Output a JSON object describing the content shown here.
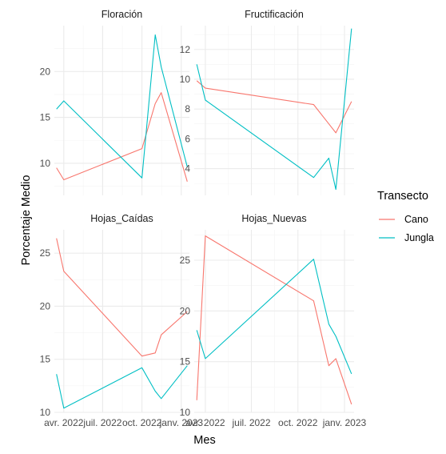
{
  "chart_data": {
    "type": "line",
    "xlabel": "Mes",
    "ylabel": "Porcentaje Medio",
    "x_ticks": [
      "avr. 2022",
      "juil. 2022",
      "oct. 2022",
      "janv. 2023"
    ],
    "x_tick_values": [
      "2022-04-01",
      "2022-07-01",
      "2022-10-01",
      "2023-01-01"
    ],
    "x_range": [
      "2022-03-10",
      "2023-01-20"
    ],
    "grid": true,
    "legend": {
      "title": "Transecto",
      "position": "right",
      "items": [
        {
          "name": "Cano",
          "color": "#F8766D"
        },
        {
          "name": "Jungla",
          "color": "#00BFC4"
        }
      ]
    },
    "panels": [
      {
        "title": "Floración",
        "ylim": [
          6.5,
          25
        ],
        "y_ticks": [
          10,
          15,
          20
        ],
        "series": [
          {
            "name": "Cano",
            "color": "#F8766D",
            "x": [
              "2022-03-15",
              "2022-04-01",
              "2022-10-01",
              "2022-11-01",
              "2022-11-15",
              "2023-01-15"
            ],
            "y": [
              9.5,
              8.2,
              11.6,
              16.5,
              17.7,
              8.0
            ]
          },
          {
            "name": "Jungla",
            "color": "#00BFC4",
            "x": [
              "2022-03-15",
              "2022-04-01",
              "2022-10-01",
              "2022-11-01",
              "2022-11-15",
              "2023-01-15"
            ],
            "y": [
              15.9,
              16.8,
              8.4,
              24.0,
              20.5,
              9.6
            ]
          }
        ]
      },
      {
        "title": "Fructificación",
        "ylim": [
          2.2,
          13.6
        ],
        "y_ticks": [
          4,
          6,
          8,
          10,
          12
        ],
        "series": [
          {
            "name": "Cano",
            "color": "#F8766D",
            "x": [
              "2022-03-15",
              "2022-04-01",
              "2022-11-01",
              "2022-12-01",
              "2022-12-15",
              "2023-01-15"
            ],
            "y": [
              9.9,
              9.4,
              8.3,
              7.0,
              6.4,
              8.5
            ]
          },
          {
            "name": "Jungla",
            "color": "#00BFC4",
            "x": [
              "2022-03-15",
              "2022-04-01",
              "2022-11-01",
              "2022-12-01",
              "2022-12-15",
              "2023-01-15"
            ],
            "y": [
              11.0,
              8.6,
              3.4,
              4.7,
              2.6,
              13.4
            ]
          }
        ]
      },
      {
        "title": "Hojas_Caídas",
        "ylim": [
          10,
          27.2
        ],
        "y_ticks": [
          10,
          15,
          20,
          25
        ],
        "series": [
          {
            "name": "Cano",
            "color": "#F8766D",
            "x": [
              "2022-03-15",
              "2022-04-01",
              "2022-10-01",
              "2022-11-01",
              "2022-11-15",
              "2023-01-15"
            ],
            "y": [
              26.4,
              23.3,
              15.3,
              15.6,
              17.3,
              19.5
            ]
          },
          {
            "name": "Jungla",
            "color": "#00BFC4",
            "x": [
              "2022-03-15",
              "2022-04-01",
              "2022-10-01",
              "2022-11-01",
              "2022-11-15",
              "2023-01-15"
            ],
            "y": [
              13.6,
              10.4,
              14.2,
              12.0,
              11.3,
              14.4
            ]
          }
        ]
      },
      {
        "title": "Hojas_Nuevas",
        "ylim": [
          10,
          28
        ],
        "y_ticks": [
          10,
          15,
          20,
          25
        ],
        "series": [
          {
            "name": "Cano",
            "color": "#F8766D",
            "x": [
              "2022-03-15",
              "2022-04-01",
              "2022-11-01",
              "2022-12-01",
              "2022-12-15",
              "2023-01-15"
            ],
            "y": [
              11.2,
              27.4,
              21.0,
              14.6,
              15.3,
              10.8
            ]
          },
          {
            "name": "Jungla",
            "color": "#00BFC4",
            "x": [
              "2022-03-15",
              "2022-04-01",
              "2022-11-01",
              "2022-12-01",
              "2022-12-15",
              "2023-01-15"
            ],
            "y": [
              18.1,
              15.3,
              25.1,
              18.7,
              17.5,
              13.8
            ]
          }
        ]
      }
    ]
  }
}
